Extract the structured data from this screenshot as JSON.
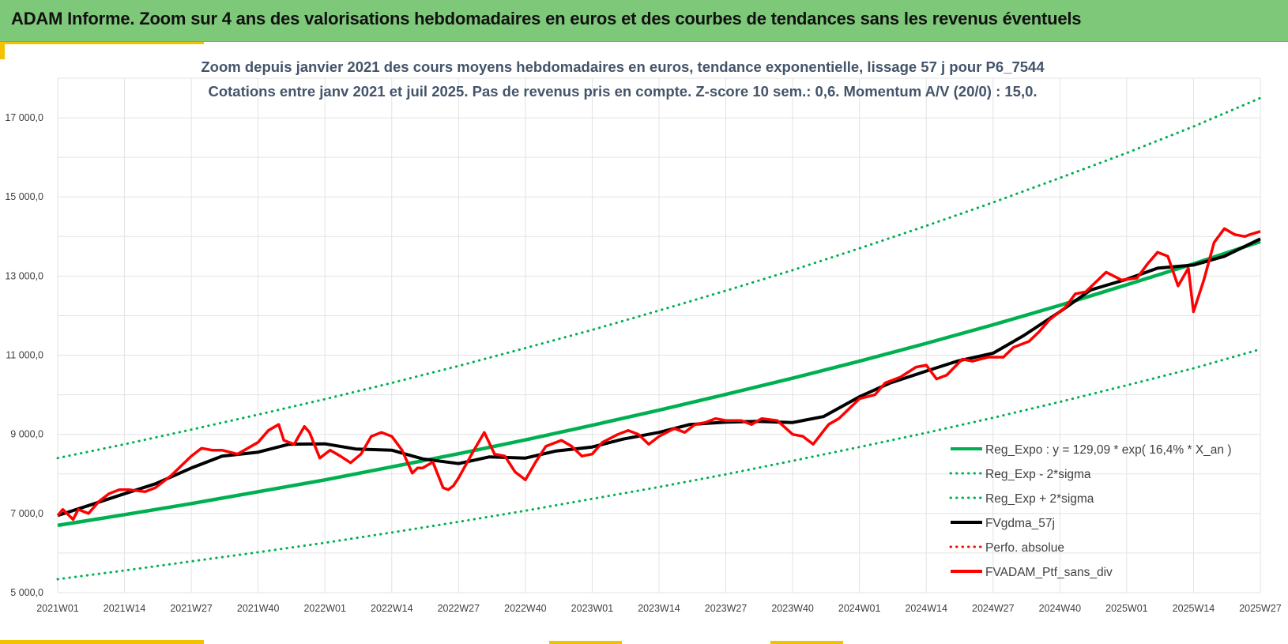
{
  "banner": {
    "title": "ADAM Informe. Zoom sur 4 ans des valorisations hebdomadaires en euros et des courbes de tendances sans les revenus éventuels"
  },
  "colors": {
    "banner_green": "#7ec87a",
    "accent_yellow": "#f2c200",
    "regression_green": "#00b050",
    "moving_average_black": "#000000",
    "portfolio_red": "#ff0000"
  },
  "chart_data": {
    "type": "line",
    "title": "Zoom depuis janvier 2021 des cours moyens hebdomadaires  en euros, tendance exponentielle, lissage 57 j pour P6_7544",
    "subtitle": "Cotations entre janv 2021 et juil 2025. Pas de revenus pris en compte. Z-score 10 sem.: 0,6. Momentum A/V (20/0) : 15,0.",
    "xlabel": "",
    "ylabel": "",
    "x_ticks": [
      "2021W01",
      "2021W14",
      "2021W27",
      "2021W40",
      "2022W01",
      "2022W14",
      "2022W27",
      "2022W40",
      "2023W01",
      "2023W14",
      "2023W27",
      "2023W40",
      "2024W01",
      "2024W14",
      "2024W27",
      "2024W40",
      "2025W01",
      "2025W14",
      "2025W27"
    ],
    "y_ticks": [
      "5 000,0",
      "7 000,0",
      "9 000,0",
      "11 000,0",
      "13 000,0",
      "15 000,0",
      "17 000,0"
    ],
    "ylim": [
      5000,
      18000
    ],
    "grid": true,
    "legend_position": "bottom-right",
    "series": [
      {
        "name": "Reg_Expo : y = 129,09 * exp( 16,4% *  X_an )",
        "style": "solid",
        "color": "#00b050",
        "x": [
          "2021W01",
          "2021W14",
          "2021W27",
          "2021W40",
          "2022W01",
          "2022W14",
          "2022W27",
          "2022W40",
          "2023W01",
          "2023W14",
          "2023W27",
          "2023W40",
          "2024W01",
          "2024W14",
          "2024W27",
          "2024W40",
          "2025W01",
          "2025W14",
          "2025W27"
        ],
        "values": [
          6700,
          6970,
          7250,
          7550,
          7850,
          8180,
          8510,
          8860,
          9230,
          9610,
          10010,
          10420,
          10850,
          11300,
          11770,
          12260,
          12780,
          13310,
          13870
        ]
      },
      {
        "name": "Reg_Exp - 2*sigma",
        "style": "dotted",
        "color": "#00b050",
        "x": [
          "2021W01",
          "2021W14",
          "2021W27",
          "2021W40",
          "2022W01",
          "2022W14",
          "2022W27",
          "2022W40",
          "2023W01",
          "2023W14",
          "2023W27",
          "2023W40",
          "2024W01",
          "2024W14",
          "2024W27",
          "2024W40",
          "2025W01",
          "2025W14",
          "2025W27"
        ],
        "values": [
          5340,
          5560,
          5790,
          6020,
          6260,
          6520,
          6790,
          7070,
          7370,
          7670,
          7990,
          8330,
          8680,
          9040,
          9420,
          9820,
          10240,
          10670,
          11150
        ]
      },
      {
        "name": "Reg_Exp + 2*sigma",
        "style": "dotted",
        "color": "#00b050",
        "x": [
          "2021W01",
          "2021W14",
          "2021W27",
          "2021W40",
          "2022W01",
          "2022W14",
          "2022W27",
          "2022W40",
          "2023W01",
          "2023W14",
          "2023W27",
          "2023W40",
          "2024W01",
          "2024W14",
          "2024W27",
          "2024W40",
          "2025W01",
          "2025W14",
          "2025W27"
        ],
        "values": [
          8400,
          8750,
          9120,
          9500,
          9890,
          10300,
          10730,
          11180,
          11640,
          12130,
          12630,
          13150,
          13700,
          14270,
          14860,
          15480,
          16110,
          16780,
          17500
        ]
      },
      {
        "name": "FVgdma_57j",
        "style": "solid",
        "color": "#000000",
        "x": [
          "2021W01",
          "2021W07",
          "2021W14",
          "2021W20",
          "2021W27",
          "2021W33",
          "2021W40",
          "2021W46",
          "2022W01",
          "2022W07",
          "2022W14",
          "2022W20",
          "2022W27",
          "2022W33",
          "2022W40",
          "2022W46",
          "2023W01",
          "2023W07",
          "2023W14",
          "2023W20",
          "2023W27",
          "2023W33",
          "2023W40",
          "2023W46",
          "2024W01",
          "2024W07",
          "2024W14",
          "2024W20",
          "2024W27",
          "2024W33",
          "2024W40",
          "2024W46",
          "2025W01",
          "2025W07",
          "2025W14",
          "2025W20",
          "2025W27"
        ],
        "values": [
          6950,
          7200,
          7500,
          7750,
          8150,
          8450,
          8550,
          8750,
          8760,
          8630,
          8600,
          8380,
          8260,
          8430,
          8400,
          8580,
          8680,
          8880,
          9050,
          9250,
          9310,
          9330,
          9300,
          9450,
          9950,
          10300,
          10600,
          10850,
          11050,
          11500,
          12100,
          12650,
          12920,
          13200,
          13280,
          13500,
          13940
        ]
      },
      {
        "name": "Perfo. absolue",
        "style": "dotted",
        "color": "#ff0000",
        "x": [],
        "values": []
      },
      {
        "name": "FVADAM_Ptf_sans_div",
        "style": "solid",
        "color": "#ff0000",
        "x": [
          "2021W01",
          "2021W02",
          "2021W04",
          "2021W05",
          "2021W07",
          "2021W09",
          "2021W11",
          "2021W13",
          "2021W15",
          "2021W18",
          "2021W20",
          "2021W23",
          "2021W25",
          "2021W27",
          "2021W29",
          "2021W31",
          "2021W33",
          "2021W36",
          "2021W38",
          "2021W40",
          "2021W42",
          "2021W44",
          "2021W45",
          "2021W47",
          "2021W49",
          "2021W50",
          "2021W52",
          "2022W02",
          "2022W04",
          "2022W06",
          "2022W08",
          "2022W10",
          "2022W12",
          "2022W14",
          "2022W16",
          "2022W18",
          "2022W19",
          "2022W20",
          "2022W22",
          "2022W24",
          "2022W25",
          "2022W26",
          "2022W27",
          "2022W30",
          "2022W32",
          "2022W34",
          "2022W36",
          "2022W38",
          "2022W40",
          "2022W42",
          "2022W44",
          "2022W47",
          "2022W49",
          "2022W51",
          "2023W01",
          "2023W03",
          "2023W06",
          "2023W08",
          "2023W10",
          "2023W12",
          "2023W14",
          "2023W17",
          "2023W19",
          "2023W21",
          "2023W23",
          "2023W25",
          "2023W27",
          "2023W30",
          "2023W32",
          "2023W34",
          "2023W37",
          "2023W40",
          "2023W42",
          "2023W44",
          "2023W47",
          "2023W49",
          "2024W01",
          "2024W04",
          "2024W06",
          "2024W09",
          "2024W12",
          "2024W14",
          "2024W16",
          "2024W18",
          "2024W21",
          "2024W23",
          "2024W26",
          "2024W29",
          "2024W31",
          "2024W34",
          "2024W36",
          "2024W38",
          "2024W41",
          "2024W43",
          "2024W45",
          "2024W47",
          "2024W49",
          "2024W52",
          "2025W03",
          "2025W05",
          "2025W07",
          "2025W09",
          "2025W11",
          "2025W13",
          "2025W14",
          "2025W16",
          "2025W18",
          "2025W20",
          "2025W22",
          "2025W24",
          "2025W25",
          "2025W27"
        ],
        "values": [
          6950,
          7100,
          6850,
          7100,
          7000,
          7300,
          7500,
          7600,
          7600,
          7550,
          7650,
          7950,
          8200,
          8450,
          8650,
          8600,
          8600,
          8500,
          8650,
          8800,
          9100,
          9250,
          8850,
          8750,
          9200,
          9050,
          8400,
          8600,
          8450,
          8280,
          8500,
          8950,
          9050,
          8950,
          8600,
          8020,
          8150,
          8150,
          8300,
          7650,
          7600,
          7700,
          7900,
          8600,
          9050,
          8500,
          8450,
          8050,
          7850,
          8300,
          8700,
          8850,
          8700,
          8450,
          8500,
          8800,
          9000,
          9100,
          9000,
          8750,
          8950,
          9150,
          9050,
          9250,
          9300,
          9400,
          9350,
          9350,
          9250,
          9400,
          9350,
          9000,
          8950,
          8750,
          9250,
          9400,
          9900,
          10000,
          10300,
          10450,
          10700,
          10750,
          10400,
          10500,
          10900,
          10850,
          10950,
          10950,
          11200,
          11350,
          11600,
          11900,
          12200,
          12550,
          12600,
          12850,
          13100,
          12900,
          12950,
          13300,
          13600,
          13500,
          12750,
          13200,
          12100,
          12900,
          13850,
          14200,
          14050,
          14000,
          14050,
          14130
        ]
      }
    ]
  }
}
